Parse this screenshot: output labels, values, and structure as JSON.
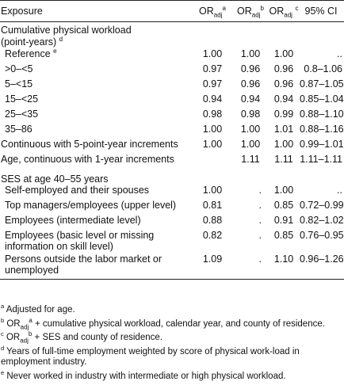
{
  "header": {
    "exposure": "Exposure",
    "or_label": "OR",
    "or_sub": "adj",
    "sup_a": "a",
    "sup_b": "b",
    "sup_c": "c",
    "ci": "95% CI"
  },
  "sections": {
    "cumulative_title_1": "Cumulative physical workload",
    "cumulative_title_2": "(point-years)",
    "cumulative_sup": "d",
    "ses_title": "SES at age 40–55 years"
  },
  "rows": [
    {
      "label": "Reference",
      "sup": "e",
      "a": "1.00",
      "b": "1.00",
      "c": "1.00",
      "ci": ".."
    },
    {
      "label": ">0–<5",
      "a": "0.97",
      "b": "0.96",
      "c": "0.96",
      "ci": "0.8–1.06"
    },
    {
      "label": "5–<15",
      "a": "0.97",
      "b": "0.96",
      "c": "0.96",
      "ci": "0.87–1.05"
    },
    {
      "label": "15–<25",
      "a": "0.94",
      "b": "0.94",
      "c": "0.94",
      "ci": "0.85–1.04"
    },
    {
      "label": "25–<35",
      "a": "0.98",
      "b": "0.98",
      "c": "0.99",
      "ci": "0.88–1.10"
    },
    {
      "label": "35–86",
      "a": "1.00",
      "b": "1.00",
      "c": "1.01",
      "ci": "0.88–1.16"
    },
    {
      "label": "Continuous with 5-point-year increments",
      "a": "1.00",
      "b": "1.00",
      "c": "1.00",
      "ci": "0.99–1.01"
    },
    {
      "label": "Age, continuous with 1-year increments",
      "a": "",
      "b": "1.11",
      "c": "1.11",
      "ci": "1.11–1.11"
    },
    {
      "label": "Self-employed and their spouses",
      "a": "1.00",
      "b": ".",
      "c": "1.00",
      "ci": ".."
    },
    {
      "label": "Top managers/employees (upper level)",
      "a": "0.81",
      "b": ".",
      "c": "0.85",
      "ci": "0.72–0.99"
    },
    {
      "label": "Employees (intermediate level)",
      "a": "0.88",
      "b": ".",
      "c": "0.91",
      "ci": "0.82–1.02"
    },
    {
      "label_1": "Employees (basic level or missing",
      "label_2": "information on skill level)",
      "a": "0.82",
      "b": ".",
      "c": "0.85",
      "ci": "0.76–0.95"
    },
    {
      "label_1": "Persons outside the labor market or",
      "label_2": "unemployed",
      "a": "1.09",
      "b": ".",
      "c": "1.10",
      "ci": "0.96–1.26"
    }
  ],
  "footnotes": [
    {
      "mark": "a",
      "text": " Adjusted for age."
    },
    {
      "mark": "b",
      "text_1": " OR",
      "sub": "adj",
      "sup": "a",
      "text_2": " + cumulative physical workload, calendar year, and county of residence."
    },
    {
      "mark": "c",
      "text_1": " OR",
      "sub": "adj",
      "sup": "b",
      "text_2": " + SES and county of residence."
    },
    {
      "mark": "d",
      "text": " Years of full-time employment weighted by score of physical work-load in employment industry."
    },
    {
      "mark": "e",
      "text": " Never worked in industry with intermediate or high physical workload."
    }
  ]
}
